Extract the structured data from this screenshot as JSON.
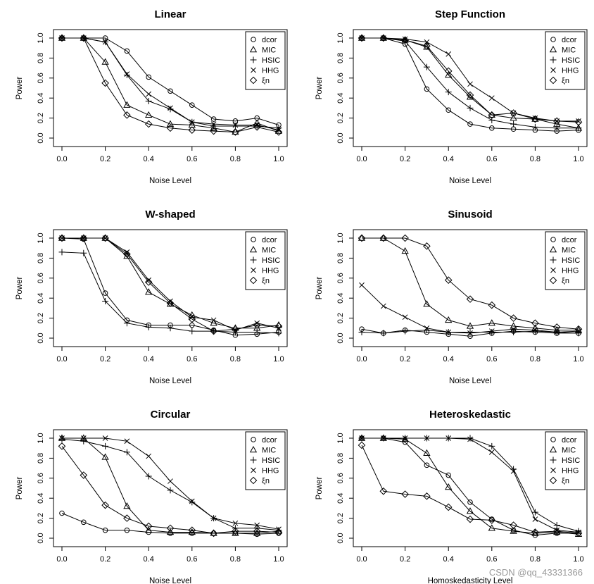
{
  "legend_labels": [
    "dcor",
    "MIC",
    "HSIC",
    "HHG",
    "ξn"
  ],
  "marker_shapes": [
    "circle",
    "triangle",
    "plus",
    "cross",
    "diamond"
  ],
  "watermark": "CSDN @qq_43331366",
  "chart_data": [
    {
      "type": "line",
      "title": "Linear",
      "xlabel": "Noise Level",
      "ylabel": "Power",
      "x": [
        0,
        0.1,
        0.2,
        0.3,
        0.4,
        0.5,
        0.6,
        0.7,
        0.8,
        0.9,
        1.0
      ],
      "xlim": [
        0,
        1
      ],
      "ylim": [
        0,
        1
      ],
      "xticks": [
        "0.0",
        "0.2",
        "0.4",
        "0.6",
        "0.8",
        "1.0"
      ],
      "yticks": [
        "0.0",
        "0.2",
        "0.4",
        "0.6",
        "0.8",
        "1.0"
      ],
      "series": [
        {
          "name": "dcor",
          "values": [
            1.0,
            1.0,
            1.0,
            0.87,
            0.61,
            0.47,
            0.33,
            0.19,
            0.17,
            0.2,
            0.13
          ]
        },
        {
          "name": "MIC",
          "values": [
            1.0,
            1.0,
            0.76,
            0.33,
            0.23,
            0.14,
            0.13,
            0.1,
            0.06,
            0.15,
            0.07
          ]
        },
        {
          "name": "HSIC",
          "values": [
            1.0,
            1.0,
            0.96,
            0.63,
            0.37,
            0.29,
            0.16,
            0.12,
            0.12,
            0.12,
            0.1
          ]
        },
        {
          "name": "HHG",
          "values": [
            1.0,
            1.0,
            0.96,
            0.64,
            0.44,
            0.3,
            0.16,
            0.14,
            0.13,
            0.13,
            0.08
          ]
        },
        {
          "name": "ξn",
          "values": [
            1.0,
            1.0,
            0.55,
            0.23,
            0.14,
            0.1,
            0.08,
            0.07,
            0.06,
            0.11,
            0.06
          ]
        }
      ]
    },
    {
      "type": "line",
      "title": "Step Function",
      "xlabel": "Noise Level",
      "ylabel": "Power",
      "x": [
        0,
        0.1,
        0.2,
        0.3,
        0.4,
        0.5,
        0.6,
        0.7,
        0.8,
        0.9,
        1.0
      ],
      "xlim": [
        0,
        1
      ],
      "ylim": [
        0,
        1
      ],
      "xticks": [
        "0.0",
        "0.2",
        "0.4",
        "0.6",
        "0.8",
        "1.0"
      ],
      "yticks": [
        "0.0",
        "0.2",
        "0.4",
        "0.6",
        "0.8",
        "1.0"
      ],
      "series": [
        {
          "name": "dcor",
          "values": [
            1.0,
            1.0,
            0.94,
            0.49,
            0.28,
            0.14,
            0.1,
            0.09,
            0.08,
            0.07,
            0.08
          ]
        },
        {
          "name": "MIC",
          "values": [
            1.0,
            1.0,
            0.98,
            0.91,
            0.63,
            0.41,
            0.23,
            0.2,
            0.19,
            0.14,
            0.1
          ]
        },
        {
          "name": "HSIC",
          "values": [
            1.0,
            1.0,
            0.97,
            0.71,
            0.46,
            0.3,
            0.18,
            0.14,
            0.11,
            0.1,
            0.1
          ]
        },
        {
          "name": "HHG",
          "values": [
            1.0,
            1.0,
            0.99,
            0.96,
            0.84,
            0.54,
            0.4,
            0.25,
            0.2,
            0.17,
            0.17
          ]
        },
        {
          "name": "ξn",
          "values": [
            1.0,
            1.0,
            0.98,
            0.92,
            0.67,
            0.43,
            0.23,
            0.25,
            0.19,
            0.17,
            0.16
          ]
        }
      ]
    },
    {
      "type": "line",
      "title": "W-shaped",
      "xlabel": "Noise Level",
      "ylabel": "Power",
      "x": [
        0,
        0.1,
        0.2,
        0.3,
        0.4,
        0.5,
        0.6,
        0.7,
        0.8,
        0.9,
        1.0
      ],
      "xlim": [
        0,
        1
      ],
      "ylim": [
        0,
        1
      ],
      "xticks": [
        "0.0",
        "0.2",
        "0.4",
        "0.6",
        "0.8",
        "1.0"
      ],
      "yticks": [
        "0.0",
        "0.2",
        "0.4",
        "0.6",
        "0.8",
        "1.0"
      ],
      "series": [
        {
          "name": "dcor",
          "values": [
            1.0,
            0.99,
            0.45,
            0.18,
            0.13,
            0.13,
            0.13,
            0.08,
            0.03,
            0.04,
            0.06
          ]
        },
        {
          "name": "MIC",
          "values": [
            1.0,
            1.0,
            1.0,
            0.82,
            0.46,
            0.34,
            0.23,
            0.15,
            0.1,
            0.1,
            0.13
          ]
        },
        {
          "name": "HSIC",
          "values": [
            0.86,
            0.85,
            0.37,
            0.15,
            0.11,
            0.1,
            0.07,
            0.07,
            0.06,
            0.06,
            0.05
          ]
        },
        {
          "name": "HHG",
          "values": [
            1.0,
            1.0,
            1.0,
            0.86,
            0.58,
            0.37,
            0.21,
            0.18,
            0.08,
            0.15,
            0.1
          ]
        },
        {
          "name": "ξn",
          "values": [
            1.0,
            1.0,
            1.0,
            0.84,
            0.56,
            0.35,
            0.19,
            0.07,
            0.09,
            0.13,
            0.12
          ]
        }
      ]
    },
    {
      "type": "line",
      "title": "Sinusoid",
      "xlabel": "Noise Level",
      "ylabel": "Power",
      "x": [
        0,
        0.1,
        0.2,
        0.3,
        0.4,
        0.5,
        0.6,
        0.7,
        0.8,
        0.9,
        1.0
      ],
      "xlim": [
        0,
        1
      ],
      "ylim": [
        0,
        1
      ],
      "xticks": [
        "0.0",
        "0.2",
        "0.4",
        "0.6",
        "0.8",
        "1.0"
      ],
      "yticks": [
        "0.0",
        "0.2",
        "0.4",
        "0.6",
        "0.8",
        "1.0"
      ],
      "series": [
        {
          "name": "dcor",
          "values": [
            0.09,
            0.05,
            0.08,
            0.06,
            0.04,
            0.02,
            0.05,
            0.07,
            0.06,
            0.05,
            0.05
          ]
        },
        {
          "name": "MIC",
          "values": [
            1.0,
            1.0,
            0.87,
            0.34,
            0.18,
            0.12,
            0.15,
            0.12,
            0.1,
            0.08,
            0.08
          ]
        },
        {
          "name": "HSIC",
          "values": [
            0.06,
            0.05,
            0.07,
            0.08,
            0.06,
            0.06,
            0.06,
            0.06,
            0.07,
            0.06,
            0.05
          ]
        },
        {
          "name": "HHG",
          "values": [
            0.53,
            0.32,
            0.21,
            0.1,
            0.06,
            0.05,
            0.07,
            0.09,
            0.08,
            0.06,
            0.07
          ]
        },
        {
          "name": "ξn",
          "values": [
            1.0,
            1.0,
            1.0,
            0.92,
            0.58,
            0.39,
            0.33,
            0.2,
            0.15,
            0.11,
            0.09
          ]
        }
      ]
    },
    {
      "type": "line",
      "title": "Circular",
      "xlabel": "Noise Level",
      "ylabel": "Power",
      "x": [
        0,
        0.1,
        0.2,
        0.3,
        0.4,
        0.5,
        0.6,
        0.7,
        0.8,
        0.9,
        1.0
      ],
      "xlim": [
        0,
        1
      ],
      "ylim": [
        0,
        1
      ],
      "xticks": [
        "0.0",
        "0.2",
        "0.4",
        "0.6",
        "0.8",
        "1.0"
      ],
      "yticks": [
        "0.0",
        "0.2",
        "0.4",
        "0.6",
        "0.8",
        "1.0"
      ],
      "series": [
        {
          "name": "dcor",
          "values": [
            0.25,
            0.16,
            0.08,
            0.08,
            0.06,
            0.05,
            0.05,
            0.05,
            0.05,
            0.04,
            0.05
          ]
        },
        {
          "name": "MIC",
          "values": [
            1.0,
            1.0,
            0.81,
            0.32,
            0.08,
            0.06,
            0.06,
            0.05,
            0.05,
            0.05,
            0.07
          ]
        },
        {
          "name": "HSIC",
          "values": [
            0.99,
            0.97,
            0.92,
            0.86,
            0.62,
            0.48,
            0.36,
            0.2,
            0.1,
            0.1,
            0.08
          ]
        },
        {
          "name": "HHG",
          "values": [
            1.0,
            1.0,
            1.0,
            0.97,
            0.82,
            0.57,
            0.37,
            0.2,
            0.15,
            0.13,
            0.09
          ]
        },
        {
          "name": "ξn",
          "values": [
            0.92,
            0.63,
            0.33,
            0.2,
            0.12,
            0.1,
            0.08,
            0.05,
            0.07,
            0.07,
            0.06
          ]
        }
      ]
    },
    {
      "type": "line",
      "title": "Heteroskedastic",
      "xlabel": "Homoskedasticity Level",
      "ylabel": "Power",
      "x": [
        0,
        0.1,
        0.2,
        0.3,
        0.4,
        0.5,
        0.6,
        0.7,
        0.8,
        0.9,
        1.0
      ],
      "xlim": [
        0,
        1
      ],
      "ylim": [
        0,
        1
      ],
      "xticks": [
        "0.0",
        "0.2",
        "0.4",
        "0.6",
        "0.8",
        "1.0"
      ],
      "yticks": [
        "0.0",
        "0.2",
        "0.4",
        "0.6",
        "0.8",
        "1.0"
      ],
      "series": [
        {
          "name": "dcor",
          "values": [
            1.0,
            1.0,
            0.96,
            0.73,
            0.63,
            0.36,
            0.19,
            0.08,
            0.03,
            0.05,
            0.05
          ]
        },
        {
          "name": "MIC",
          "values": [
            1.0,
            1.0,
            0.99,
            0.85,
            0.51,
            0.27,
            0.1,
            0.07,
            0.05,
            0.06,
            0.04
          ]
        },
        {
          "name": "HSIC",
          "values": [
            1.0,
            1.0,
            1.0,
            1.0,
            1.0,
            1.0,
            0.92,
            0.69,
            0.26,
            0.13,
            0.07
          ]
        },
        {
          "name": "HHG",
          "values": [
            1.0,
            1.0,
            1.0,
            1.0,
            1.0,
            0.99,
            0.86,
            0.67,
            0.19,
            0.08,
            0.06
          ]
        },
        {
          "name": "ξn",
          "values": [
            0.93,
            0.47,
            0.44,
            0.42,
            0.31,
            0.19,
            0.18,
            0.13,
            0.06,
            0.07,
            0.05
          ]
        }
      ]
    }
  ]
}
